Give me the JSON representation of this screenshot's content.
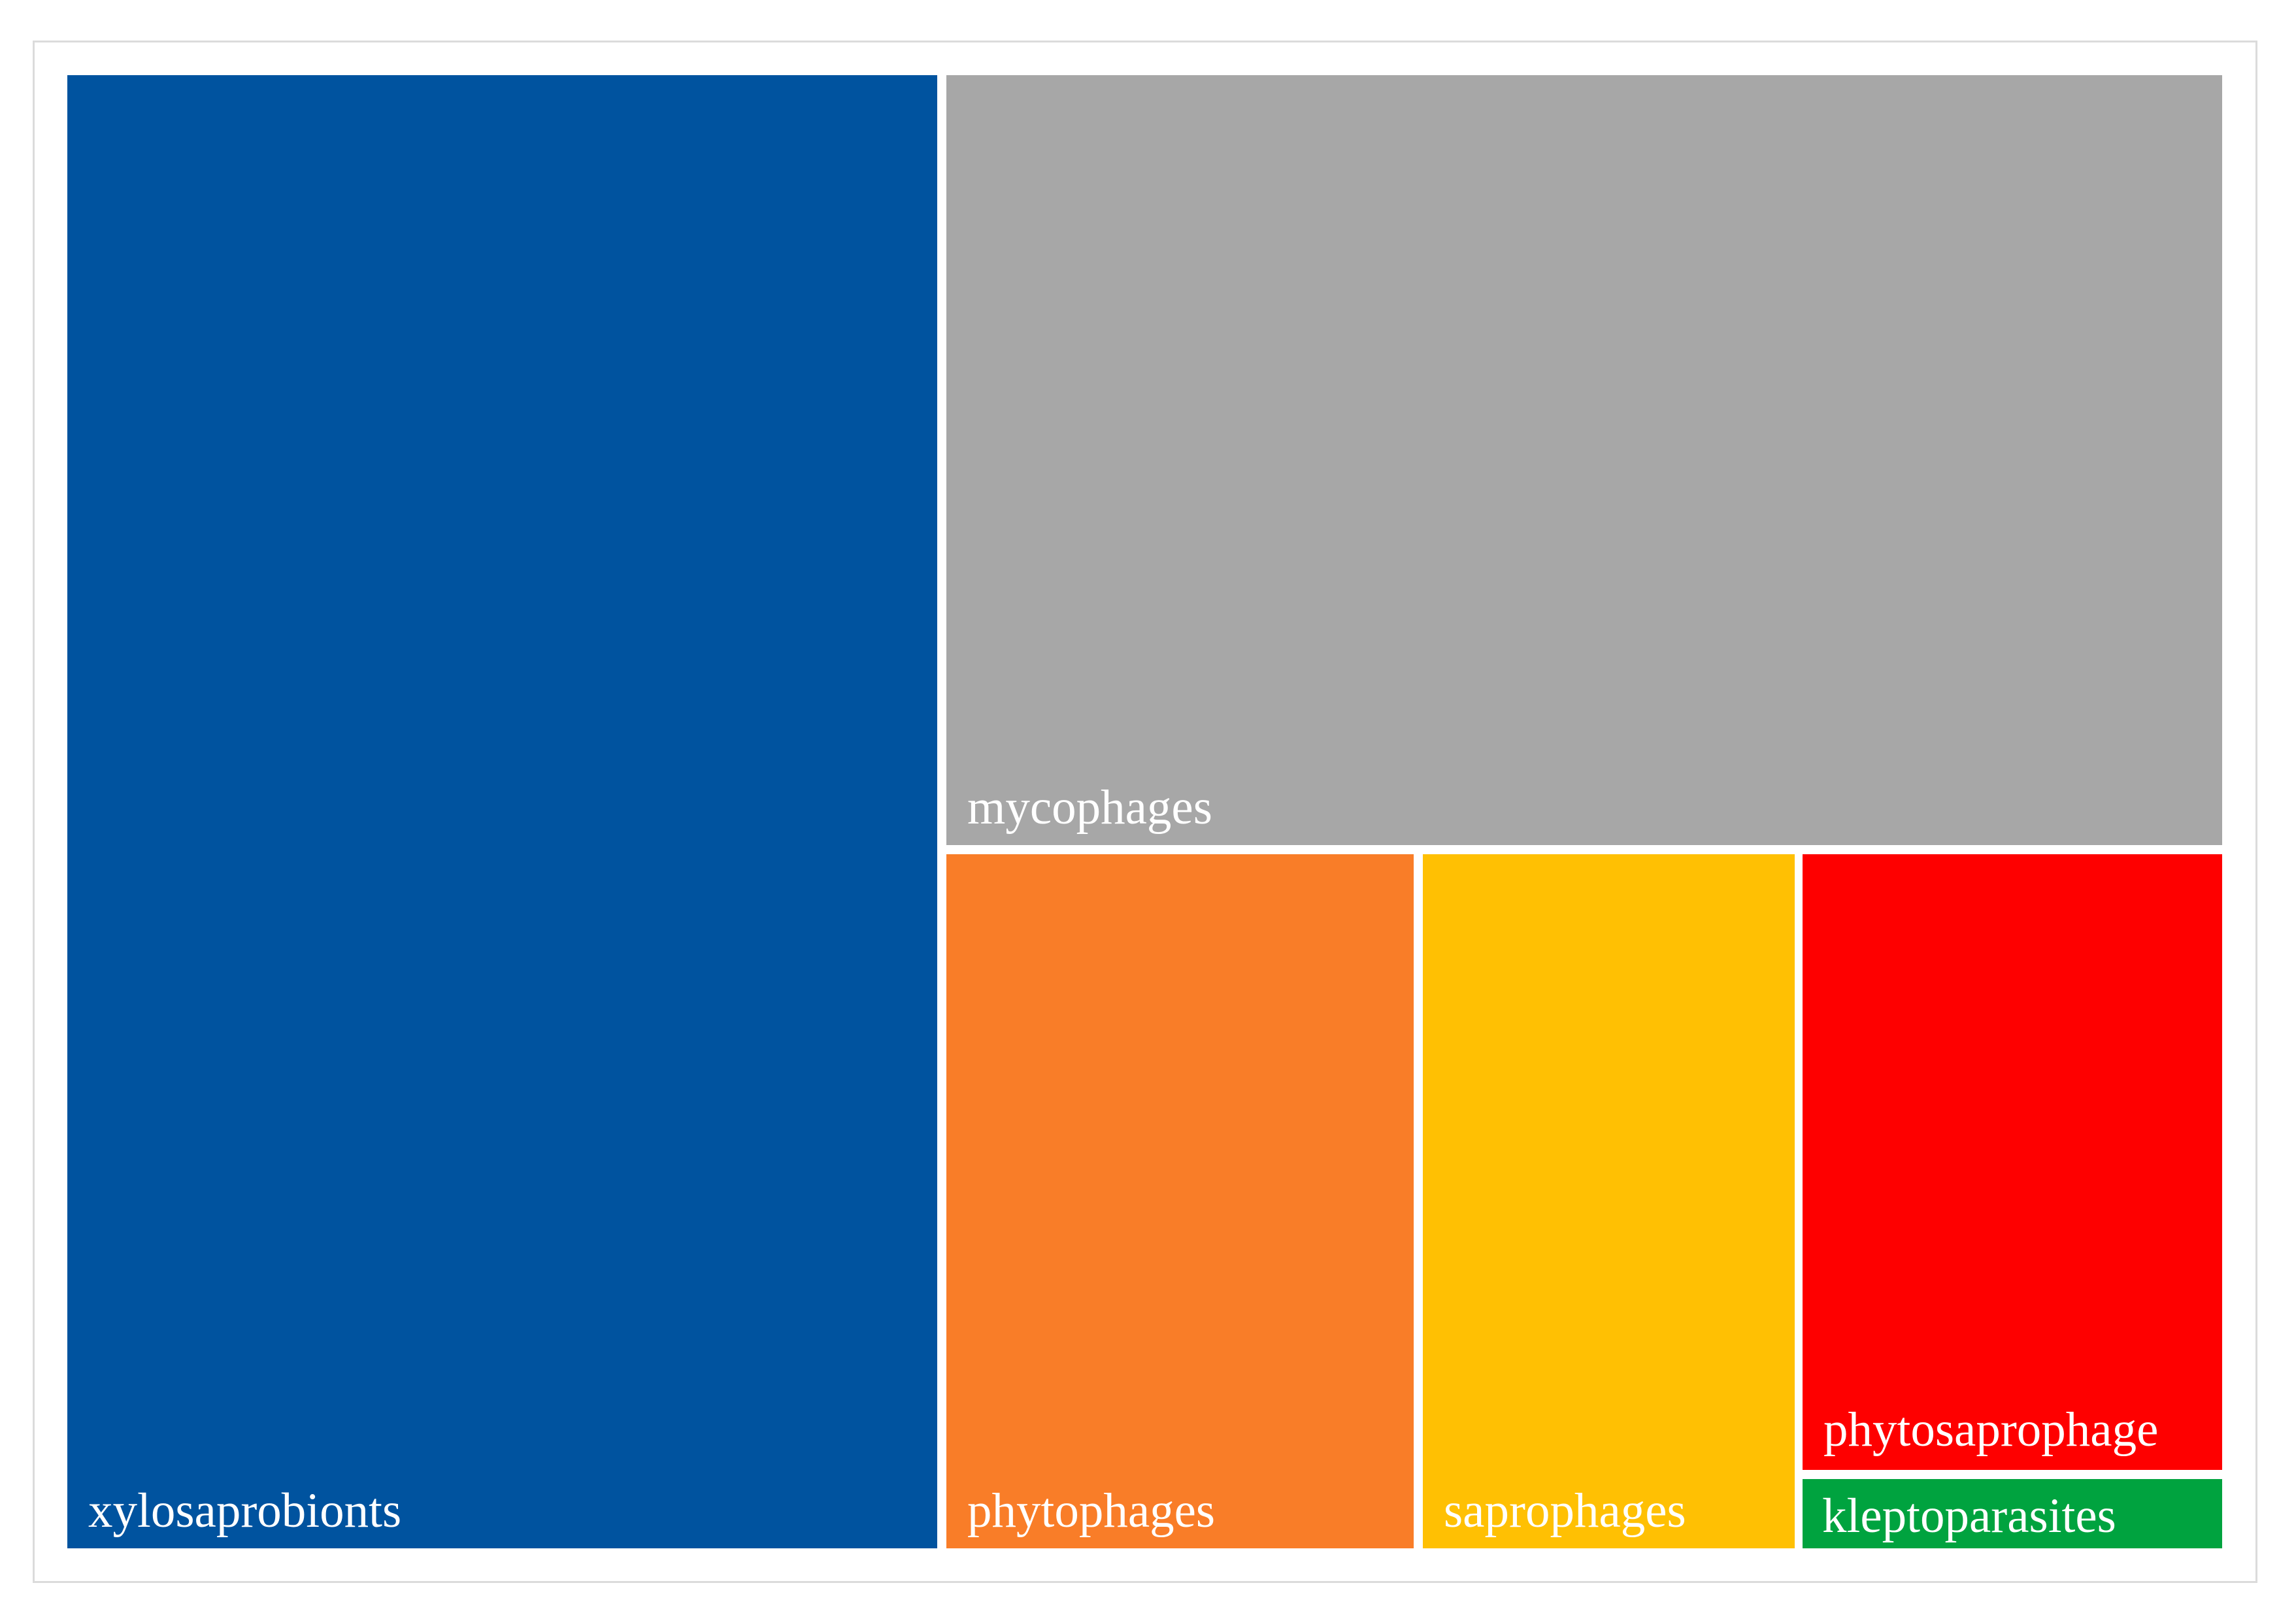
{
  "figure": {
    "background_color": "#FFFFFF",
    "frame_border_color": "#DBDBDB",
    "label_text_color": "#FFFFFF"
  },
  "chart_data": {
    "type": "treemap",
    "title": "",
    "legend": "none",
    "categories": [
      "xylosaprobionts",
      "mycophages",
      "phytophages",
      "saprophages",
      "phytosaprophage",
      "kleptoparasites"
    ],
    "series": [
      {
        "label": "xylosaprobionts",
        "color": "#00539F",
        "area_pct_estimated": 40.9
      },
      {
        "label": "mycophages",
        "color": "#A7A7A7",
        "area_pct_estimated": 31.3
      },
      {
        "label": "phytophages",
        "color": "#F97D28",
        "area_pct_estimated": 10.3
      },
      {
        "label": "saprophages",
        "color": "#FFC003",
        "area_pct_estimated": 8.2
      },
      {
        "label": "phytosaprophage",
        "color": "#FE0000",
        "area_pct_estimated": 8.3
      },
      {
        "label": "kleptoparasites",
        "color": "#00A33F",
        "area_pct_estimated": 0.9
      }
    ]
  }
}
